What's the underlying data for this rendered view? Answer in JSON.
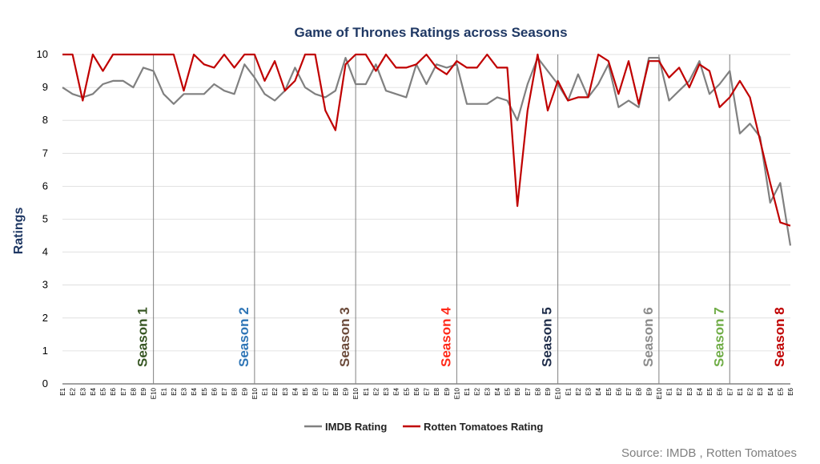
{
  "chart_data": {
    "type": "line",
    "title": "Game of Thrones Ratings across Seasons",
    "ylabel": "Ratings",
    "xlabel": "",
    "ylim": [
      0,
      10
    ],
    "yticks": [
      0,
      1,
      2,
      3,
      4,
      5,
      6,
      7,
      8,
      9,
      10
    ],
    "grid": "horizontal",
    "seasons": [
      {
        "name": "Season 1",
        "episodes": 10,
        "color": "#375623"
      },
      {
        "name": "Season 2",
        "episodes": 10,
        "color": "#2e75b6"
      },
      {
        "name": "Season 3",
        "episodes": 10,
        "color": "#6b4a3a"
      },
      {
        "name": "Season 4",
        "episodes": 10,
        "color": "#ff2a1a"
      },
      {
        "name": "Season 5",
        "episodes": 10,
        "color": "#1f2d4a"
      },
      {
        "name": "Season 6",
        "episodes": 10,
        "color": "#8c8c8c"
      },
      {
        "name": "Season 7",
        "episodes": 7,
        "color": "#70ad47"
      },
      {
        "name": "Season 8",
        "episodes": 6,
        "color": "#c00000"
      }
    ],
    "categories": [
      "E1",
      "E2",
      "E3",
      "E4",
      "E5",
      "E6",
      "E7",
      "E8",
      "E9",
      "E10",
      "E1",
      "E2",
      "E3",
      "E4",
      "E5",
      "E6",
      "E7",
      "E8",
      "E9",
      "E10",
      "E1",
      "E2",
      "E3",
      "E4",
      "E5",
      "E6",
      "E7",
      "E8",
      "E9",
      "E10",
      "E1",
      "E2",
      "E3",
      "E4",
      "E5",
      "E6",
      "E7",
      "E8",
      "E9",
      "E10",
      "E1",
      "E2",
      "E3",
      "E4",
      "E5",
      "E6",
      "E7",
      "E8",
      "E9",
      "E10",
      "E1",
      "E2",
      "E3",
      "E4",
      "E5",
      "E6",
      "E7",
      "E8",
      "E9",
      "E10",
      "E1",
      "E2",
      "E3",
      "E4",
      "E5",
      "E6",
      "E7",
      "E1",
      "E2",
      "E3",
      "E4",
      "E5",
      "E6"
    ],
    "series": [
      {
        "name": "IMDB Rating",
        "color": "#808080",
        "values": [
          9.0,
          8.8,
          8.7,
          8.8,
          9.1,
          9.2,
          9.2,
          9.0,
          9.6,
          9.5,
          8.8,
          8.5,
          8.8,
          8.8,
          8.8,
          9.1,
          8.9,
          8.8,
          9.7,
          9.3,
          8.8,
          8.6,
          8.9,
          9.6,
          9.0,
          8.8,
          8.7,
          8.9,
          9.9,
          9.1,
          9.1,
          9.7,
          8.9,
          8.8,
          8.7,
          9.7,
          9.1,
          9.7,
          9.6,
          9.7,
          8.5,
          8.5,
          8.5,
          8.7,
          8.6,
          8.0,
          9.1,
          9.9,
          9.5,
          9.1,
          8.6,
          9.4,
          8.7,
          9.1,
          9.7,
          8.4,
          8.6,
          8.4,
          9.9,
          9.9,
          8.6,
          8.9,
          9.2,
          9.8,
          8.8,
          9.1,
          9.5,
          7.6,
          7.9,
          7.5,
          5.5,
          6.1,
          4.2
        ]
      },
      {
        "name": "Rotten Tomatoes Rating",
        "color": "#c00000",
        "values": [
          10.0,
          10.0,
          8.6,
          10.0,
          9.5,
          10.0,
          10.0,
          10.0,
          10.0,
          10.0,
          10.0,
          10.0,
          8.9,
          10.0,
          9.7,
          9.6,
          10.0,
          9.6,
          10.0,
          10.0,
          9.2,
          9.8,
          8.9,
          9.2,
          10.0,
          10.0,
          8.3,
          7.7,
          9.7,
          10.0,
          10.0,
          9.5,
          10.0,
          9.6,
          9.6,
          9.7,
          10.0,
          9.6,
          9.4,
          9.8,
          9.6,
          9.6,
          10.0,
          9.6,
          9.6,
          5.4,
          8.3,
          10.0,
          8.3,
          9.2,
          8.6,
          8.7,
          8.7,
          10.0,
          9.8,
          8.8,
          9.8,
          8.5,
          9.8,
          9.8,
          9.3,
          9.6,
          9.0,
          9.7,
          9.5,
          8.4,
          8.7,
          9.2,
          8.7,
          7.4,
          6.1,
          4.9,
          4.8
        ]
      }
    ],
    "source": "Source: IMDB , Rotten Tomatoes"
  }
}
